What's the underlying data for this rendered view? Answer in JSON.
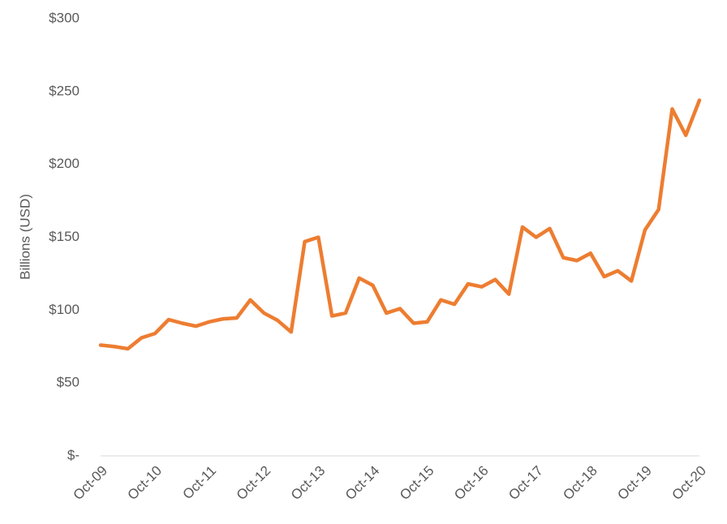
{
  "chart_data": {
    "type": "line",
    "y_label": "Billions (USD)",
    "categories": [
      "Oct-09",
      null,
      null,
      null,
      "Oct-10",
      null,
      null,
      null,
      "Oct-11",
      null,
      null,
      null,
      "Oct-12",
      null,
      null,
      null,
      "Oct-13",
      null,
      null,
      null,
      "Oct-14",
      null,
      null,
      null,
      "Oct-15",
      null,
      null,
      null,
      "Oct-16",
      null,
      null,
      null,
      "Oct-17",
      null,
      null,
      null,
      "Oct-18",
      null,
      null,
      null,
      "Oct-19",
      null,
      null,
      null,
      "Oct-20"
    ],
    "values": [
      76,
      75,
      73.5,
      81,
      84,
      93.5,
      91,
      89,
      92,
      94,
      94.6,
      107,
      98,
      93,
      85,
      147,
      150,
      96,
      98,
      122,
      117,
      98,
      101,
      91,
      92,
      107,
      104,
      118,
      116,
      121,
      111,
      157,
      150,
      156,
      136,
      134,
      139,
      123,
      127,
      120,
      155,
      169,
      238,
      220,
      244
    ],
    "color": "#ed7d31",
    "ylim": [
      0,
      300
    ],
    "yticks": [
      {
        "value": 0,
        "label": "$-"
      },
      {
        "value": 50,
        "label": "$50"
      },
      {
        "value": 100,
        "label": "$100"
      },
      {
        "value": 150,
        "label": "$150"
      },
      {
        "value": 200,
        "label": "$200"
      },
      {
        "value": 250,
        "label": "$250"
      },
      {
        "value": 300,
        "label": "$300"
      }
    ],
    "grid": false
  }
}
